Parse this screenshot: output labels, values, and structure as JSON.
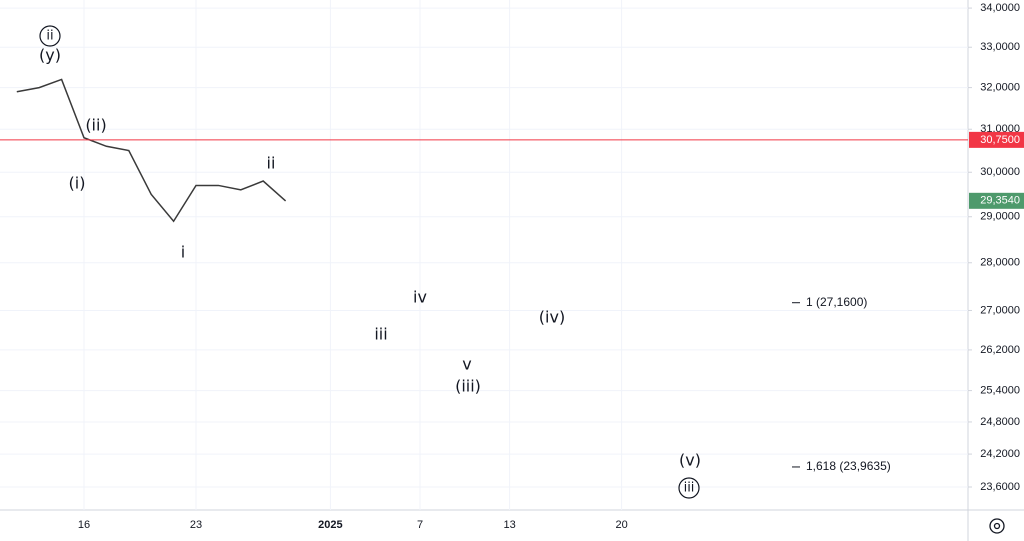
{
  "chart_data": {
    "type": "line",
    "log_scale": true,
    "grid": true,
    "color": "#3a3a3a",
    "categories": [
      null,
      null,
      null,
      "16",
      null,
      null,
      null,
      null,
      "23",
      null,
      null,
      null,
      null,
      null,
      "2025",
      null,
      null,
      null,
      "7",
      null,
      null,
      null,
      "13",
      null,
      null,
      null,
      null,
      "20",
      null,
      null,
      null,
      null,
      null,
      null,
      null,
      null,
      null,
      null,
      null,
      null,
      null,
      null,
      null
    ],
    "values": [
      31.9,
      32.0,
      32.2,
      30.8,
      30.6,
      30.5,
      29.5,
      28.9,
      29.7,
      29.7,
      29.6,
      29.8,
      29.35,
      null,
      null,
      null,
      null,
      null,
      null,
      null,
      null,
      null,
      null,
      null,
      null,
      null,
      null,
      null,
      null,
      null,
      null,
      null,
      null,
      null,
      null,
      null,
      null,
      null,
      null,
      null,
      null,
      null,
      null
    ],
    "ylim": [
      23.19,
      34.21
    ],
    "yticks": [
      {
        "value": 34,
        "label": "34,0000"
      },
      {
        "value": 33,
        "label": "33,0000"
      },
      {
        "value": 32,
        "label": "32,0000"
      },
      {
        "value": 31,
        "label": "31,0000"
      },
      {
        "value": 30,
        "label": "30,0000"
      },
      {
        "value": 29,
        "label": "29,0000"
      },
      {
        "value": 28,
        "label": "28,0000"
      },
      {
        "value": 27,
        "label": "27,0000"
      },
      {
        "value": 26.2,
        "label": "26,2000"
      },
      {
        "value": 25.4,
        "label": "25,4000"
      },
      {
        "value": 24.8,
        "label": "24,8000"
      },
      {
        "value": 24.2,
        "label": "24,2000"
      },
      {
        "value": 23.6,
        "label": "23,6000"
      }
    ],
    "level_line": {
      "value": 30.75,
      "label": "30,7500",
      "color": "#f23645"
    },
    "last_price": {
      "value": 29.354,
      "label": "29,3540",
      "color": "#4e9a6c"
    },
    "fib_levels": [
      {
        "value": 27.16,
        "label": "1 (27,1600)"
      },
      {
        "value": 23.9635,
        "label": "1,618 (23,9635)"
      }
    ],
    "annotations": [
      "ii",
      "(y)",
      "(ii)",
      "(i)",
      "ii",
      "i",
      "iv",
      "iii",
      "v",
      "(iii)",
      "(iv)",
      "(v)",
      "iii"
    ]
  }
}
